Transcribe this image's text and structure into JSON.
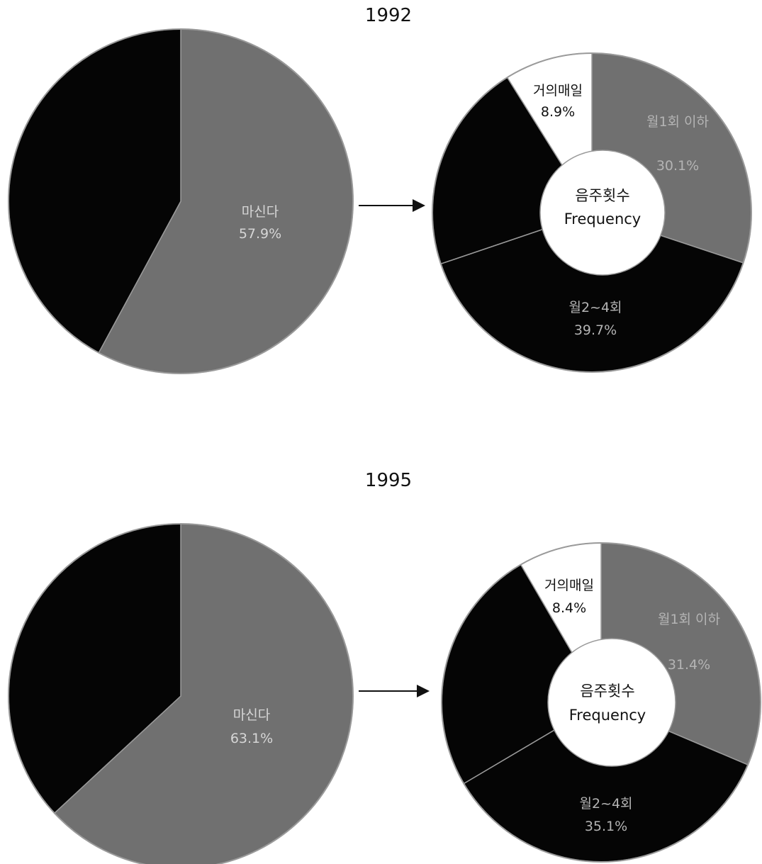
{
  "colors": {
    "dark": "#050505",
    "gray": "#707070",
    "white": "#ffffff",
    "edge": "#9a9a9a"
  },
  "center_label": {
    "line1": "음주횟수",
    "line2": "Frequency"
  },
  "chart_data": [
    {
      "type": "pie",
      "title": "1992",
      "slices": [
        {
          "label": "마신다",
          "value": 57.9,
          "text": "57.9%",
          "color": "gray"
        },
        {
          "label": "",
          "value": 42.1,
          "text": "",
          "color": "dark"
        }
      ]
    },
    {
      "type": "pie",
      "title": "1992",
      "donut": true,
      "center_label": "음주횟수 Frequency",
      "slices": [
        {
          "label": "월1회 이하",
          "value": 30.1,
          "text": "30.1%",
          "color": "gray"
        },
        {
          "label": "월2~4회",
          "value": 39.7,
          "text": "39.7%",
          "color": "dark"
        },
        {
          "label": "",
          "value": 21.3,
          "text": "",
          "color": "dark"
        },
        {
          "label": "거의매일",
          "value": 8.9,
          "text": "8.9%",
          "color": "white"
        }
      ]
    },
    {
      "type": "pie",
      "title": "1995",
      "slices": [
        {
          "label": "마신다",
          "value": 63.1,
          "text": "63.1%",
          "color": "gray"
        },
        {
          "label": "",
          "value": 36.9,
          "text": "",
          "color": "dark"
        }
      ]
    },
    {
      "type": "pie",
      "title": "1995",
      "donut": true,
      "center_label": "음주횟수 Frequency",
      "slices": [
        {
          "label": "월1회 이하",
          "value": 31.4,
          "text": "31.4%",
          "color": "gray"
        },
        {
          "label": "월2~4회",
          "value": 35.1,
          "text": "35.1%",
          "color": "dark"
        },
        {
          "label": "",
          "value": 25.1,
          "text": "",
          "color": "dark"
        },
        {
          "label": "거의매일",
          "value": 8.4,
          "text": "8.4%",
          "color": "white"
        }
      ]
    }
  ]
}
